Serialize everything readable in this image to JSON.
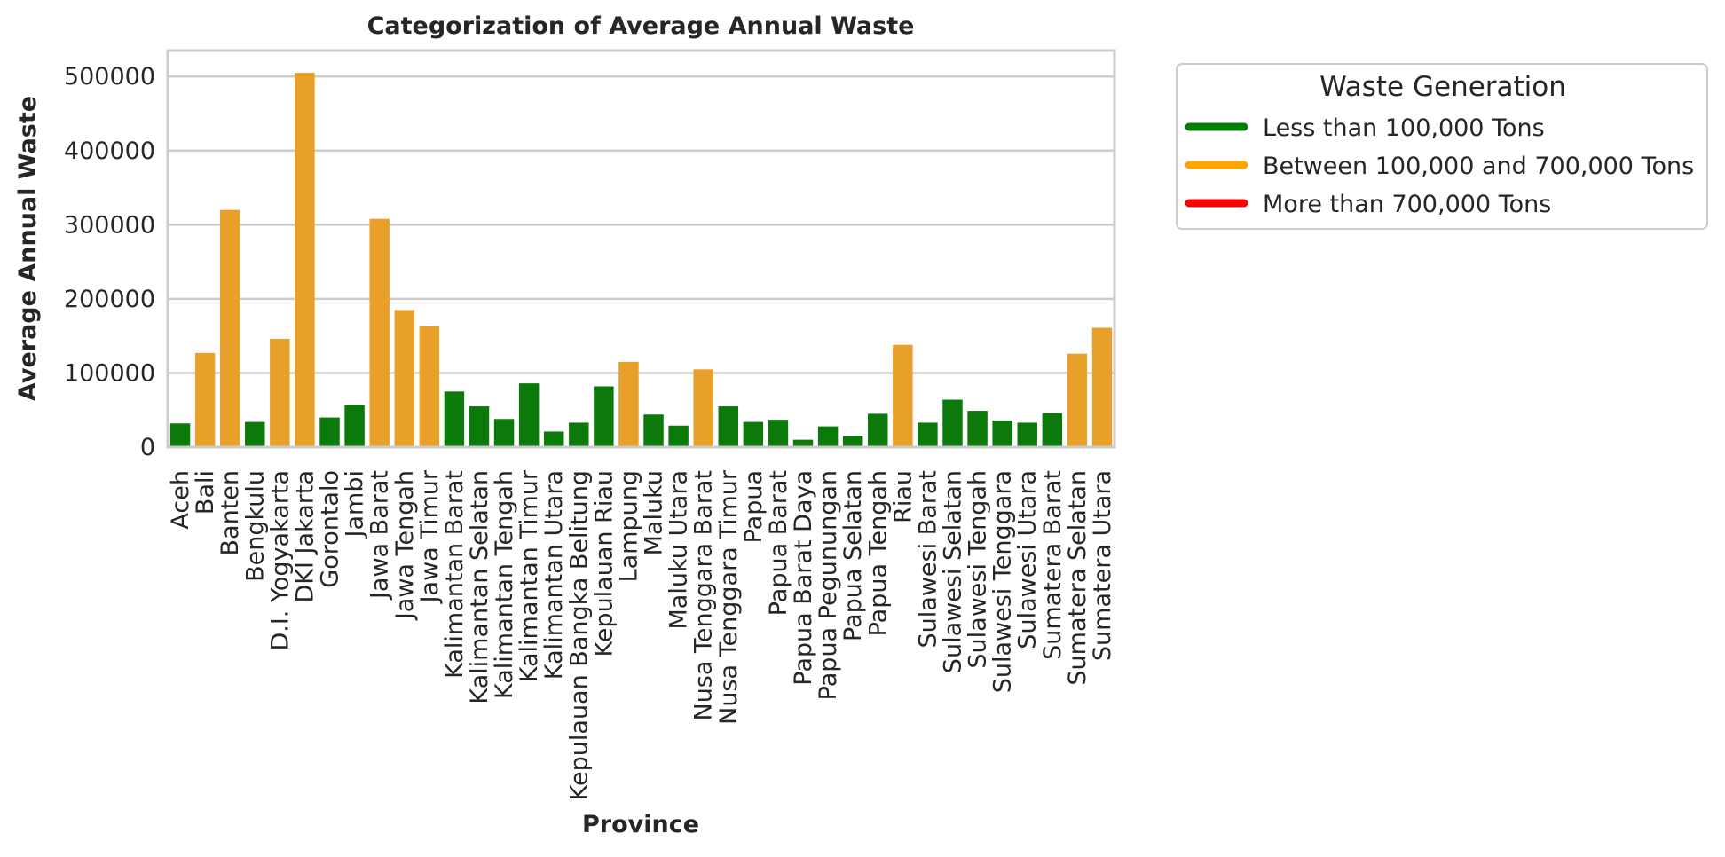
{
  "chart_data": {
    "type": "bar",
    "title": "Categorization of Average Annual Waste",
    "xlabel": "Province",
    "ylabel": "Average Annual Waste",
    "ylim": [
      0,
      535000
    ],
    "yticks": [
      0,
      100000,
      200000,
      300000,
      400000,
      500000
    ],
    "grid": true,
    "legend_position": "outside-top-right",
    "categories": [
      "Aceh",
      "Bali",
      "Banten",
      "Bengkulu",
      "D.I. Yogyakarta",
      "DKI Jakarta",
      "Gorontalo",
      "Jambi",
      "Jawa Barat",
      "Jawa Tengah",
      "Jawa Timur",
      "Kalimantan Barat",
      "Kalimantan Selatan",
      "Kalimantan Tengah",
      "Kalimantan Timur",
      "Kalimantan Utara",
      "Kepulauan Bangka Belitung",
      "Kepulauan Riau",
      "Lampung",
      "Maluku",
      "Maluku Utara",
      "Nusa Tenggara Barat",
      "Nusa Tenggara Timur",
      "Papua",
      "Papua Barat",
      "Papua Barat Daya",
      "Papua Pegunungan",
      "Papua Selatan",
      "Papua Tengah",
      "Riau",
      "Sulawesi Barat",
      "Sulawesi Selatan",
      "Sulawesi Tengah",
      "Sulawesi Tenggara",
      "Sulawesi Utara",
      "Sumatera Barat",
      "Sumatera Selatan",
      "Sumatera Utara"
    ],
    "values": [
      32000,
      127000,
      320000,
      34000,
      146000,
      505000,
      40000,
      57000,
      308000,
      185000,
      163000,
      75000,
      55000,
      38000,
      86000,
      21000,
      33000,
      82000,
      115000,
      44000,
      29000,
      105000,
      55000,
      34000,
      37000,
      10000,
      28000,
      15000,
      45000,
      138000,
      33000,
      64000,
      49000,
      36000,
      33000,
      46000,
      126000,
      161000
    ],
    "legend": {
      "title": "Waste Generation",
      "entries": [
        {
          "label": "Less than 100,000 Tons",
          "color": "#008000"
        },
        {
          "label": "Between 100,000 and 700,000 Tons",
          "color": "#FFA500"
        },
        {
          "label": "More than 700,000 Tons",
          "color": "#FF0000"
        }
      ]
    },
    "bar_colors": {
      "low": "#0b7a0b",
      "mid": "#e8a02a",
      "high": "#e02020"
    },
    "thresholds": [
      100000,
      700000
    ]
  }
}
